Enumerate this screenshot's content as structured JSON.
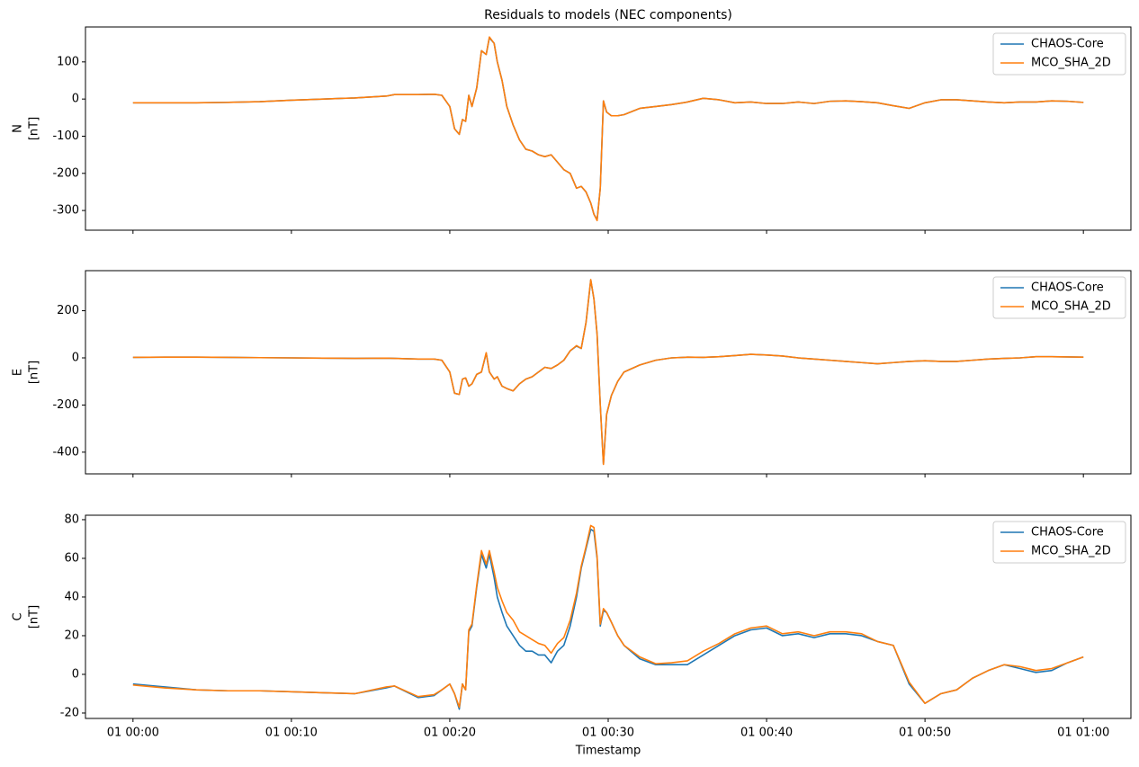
{
  "chart_data": [
    {
      "type": "line",
      "title": "Residuals to models (NEC components)",
      "ylabel": [
        "N",
        "[nT]"
      ],
      "x": [
        0,
        2,
        4,
        6,
        8,
        10,
        12,
        14,
        16,
        16.5,
        18,
        19,
        19.5,
        20,
        20.3,
        20.6,
        20.8,
        21,
        21.2,
        21.4,
        21.7,
        22,
        22.3,
        22.5,
        22.8,
        23,
        23.3,
        23.6,
        24,
        24.4,
        24.8,
        25.2,
        25.6,
        26,
        26.4,
        26.8,
        27.2,
        27.6,
        28,
        28.3,
        28.6,
        28.9,
        29.1,
        29.3,
        29.5,
        29.7,
        29.9,
        30.2,
        30.6,
        31,
        32,
        33,
        34,
        35,
        36,
        37,
        38,
        39,
        40,
        41,
        42,
        43,
        44,
        45,
        46,
        47,
        48,
        49,
        50,
        51,
        52,
        53,
        54,
        55,
        56,
        57,
        58,
        59,
        60
      ],
      "series": [
        {
          "name": "CHAOS-Core",
          "color": "#1f77b4",
          "values": [
            -10,
            -10,
            -10,
            -9,
            -7,
            -3,
            0,
            3,
            8,
            12,
            12,
            13,
            10,
            -20,
            -80,
            -95,
            -55,
            -60,
            10,
            -20,
            30,
            130,
            120,
            165,
            150,
            100,
            50,
            -20,
            -70,
            -110,
            -135,
            -140,
            -150,
            -155,
            -150,
            -170,
            -190,
            -200,
            -240,
            -235,
            -250,
            -280,
            -310,
            -325,
            -240,
            -5,
            -35,
            -45,
            -45,
            -42,
            -25,
            -20,
            -15,
            -8,
            2,
            -2,
            -10,
            -8,
            -12,
            -12,
            -8,
            -12,
            -6,
            -5,
            -7,
            -10,
            -18,
            -25,
            -10,
            -2,
            -2,
            -5,
            -8,
            -10,
            -8,
            -8,
            -5,
            -6,
            -9
          ]
        },
        {
          "name": "MCO_SHA_2D",
          "color": "#ff7f0e",
          "values": [
            -10,
            -10,
            -10,
            -9,
            -7,
            -3,
            0,
            3,
            8,
            12,
            12,
            13,
            10,
            -20,
            -80,
            -95,
            -55,
            -60,
            10,
            -20,
            30,
            130,
            120,
            167,
            150,
            100,
            50,
            -20,
            -70,
            -110,
            -135,
            -140,
            -150,
            -155,
            -150,
            -170,
            -190,
            -200,
            -240,
            -235,
            -250,
            -280,
            -310,
            -327,
            -240,
            -5,
            -35,
            -45,
            -45,
            -42,
            -25,
            -20,
            -15,
            -8,
            2,
            -2,
            -10,
            -8,
            -12,
            -12,
            -8,
            -12,
            -6,
            -5,
            -7,
            -10,
            -18,
            -25,
            -10,
            -2,
            -2,
            -5,
            -8,
            -10,
            -8,
            -8,
            -5,
            -6,
            -9
          ]
        }
      ],
      "xlim": [
        -3,
        63
      ],
      "ylim": [
        -353,
        194
      ],
      "yticks": [
        -300,
        -200,
        -100,
        0,
        100
      ],
      "legend": "upper right"
    },
    {
      "type": "line",
      "ylabel": [
        "E",
        "[nT]"
      ],
      "x": [
        0,
        2,
        4,
        6,
        8,
        10,
        12,
        14,
        16,
        16.5,
        18,
        19,
        19.5,
        20,
        20.3,
        20.6,
        20.8,
        21,
        21.2,
        21.4,
        21.7,
        22,
        22.3,
        22.5,
        22.8,
        23,
        23.3,
        23.6,
        24,
        24.4,
        24.8,
        25.2,
        25.6,
        26,
        26.4,
        26.8,
        27.2,
        27.6,
        28,
        28.3,
        28.6,
        28.9,
        29.1,
        29.3,
        29.5,
        29.7,
        29.9,
        30.2,
        30.6,
        31,
        32,
        33,
        34,
        35,
        36,
        37,
        38,
        39,
        40,
        41,
        42,
        43,
        44,
        45,
        46,
        47,
        48,
        49,
        50,
        51,
        52,
        53,
        54,
        55,
        56,
        57,
        58,
        59,
        60
      ],
      "series": [
        {
          "name": "CHAOS-Core",
          "color": "#1f77b4",
          "values": [
            2,
            3,
            3,
            2,
            1,
            0,
            -1,
            -2,
            -1,
            -2,
            -5,
            -5,
            -10,
            -60,
            -150,
            -155,
            -90,
            -85,
            -120,
            -110,
            -70,
            -60,
            20,
            -60,
            -90,
            -80,
            -120,
            -130,
            -140,
            -110,
            -90,
            -80,
            -60,
            -40,
            -45,
            -30,
            -10,
            30,
            50,
            40,
            150,
            330,
            250,
            100,
            -200,
            -450,
            -240,
            -160,
            -100,
            -60,
            -30,
            -10,
            0,
            3,
            2,
            5,
            10,
            15,
            12,
            8,
            0,
            -5,
            -10,
            -15,
            -20,
            -25,
            -20,
            -15,
            -12,
            -15,
            -15,
            -10,
            -5,
            -2,
            0,
            5,
            5,
            4,
            3
          ]
        },
        {
          "name": "MCO_SHA_2D",
          "color": "#ff7f0e",
          "values": [
            2,
            3,
            3,
            2,
            1,
            0,
            -1,
            -2,
            -1,
            -2,
            -5,
            -5,
            -10,
            -60,
            -150,
            -155,
            -90,
            -85,
            -120,
            -110,
            -70,
            -60,
            22,
            -60,
            -90,
            -80,
            -120,
            -130,
            -140,
            -110,
            -90,
            -80,
            -60,
            -40,
            -45,
            -30,
            -10,
            30,
            52,
            40,
            150,
            332,
            250,
            100,
            -200,
            -452,
            -240,
            -160,
            -100,
            -60,
            -30,
            -10,
            0,
            3,
            2,
            5,
            10,
            15,
            12,
            8,
            0,
            -5,
            -10,
            -15,
            -20,
            -25,
            -20,
            -15,
            -12,
            -15,
            -15,
            -10,
            -5,
            -2,
            0,
            5,
            5,
            4,
            3
          ]
        }
      ],
      "xlim": [
        -3,
        63
      ],
      "ylim": [
        -492,
        370
      ],
      "yticks": [
        -400,
        -200,
        0,
        200
      ],
      "legend": "upper right"
    },
    {
      "type": "line",
      "ylabel": [
        "C",
        "[nT]"
      ],
      "xlabel": "Timestamp",
      "x": [
        0,
        2,
        4,
        6,
        8,
        10,
        12,
        14,
        16,
        16.5,
        18,
        19,
        19.5,
        20,
        20.3,
        20.6,
        20.8,
        21,
        21.2,
        21.4,
        21.7,
        22,
        22.3,
        22.5,
        22.8,
        23,
        23.3,
        23.6,
        24,
        24.4,
        24.8,
        25.2,
        25.6,
        26,
        26.4,
        26.8,
        27.2,
        27.6,
        28,
        28.3,
        28.6,
        28.9,
        29.1,
        29.3,
        29.5,
        29.7,
        29.9,
        30.2,
        30.6,
        31,
        32,
        33,
        34,
        35,
        36,
        37,
        38,
        39,
        40,
        41,
        42,
        43,
        44,
        45,
        46,
        47,
        48,
        49,
        50,
        51,
        52,
        53,
        54,
        55,
        56,
        57,
        58,
        59,
        60
      ],
      "series": [
        {
          "name": "CHAOS-Core",
          "color": "#1f77b4",
          "values": [
            -5,
            -6.5,
            -8,
            -8.5,
            -8.5,
            -9,
            -9.5,
            -10,
            -7,
            -6,
            -12,
            -11,
            -8,
            -5,
            -10,
            -18,
            -5,
            -8,
            22,
            25,
            45,
            62,
            55,
            62,
            50,
            40,
            32,
            25,
            20,
            15,
            12,
            12,
            10,
            10,
            6,
            12,
            15,
            25,
            40,
            55,
            65,
            75,
            74,
            60,
            25,
            33,
            32,
            27,
            20,
            15,
            8,
            5,
            5,
            5,
            10,
            15,
            20,
            23,
            24,
            20,
            21,
            19,
            21,
            21,
            20,
            17,
            15,
            -5,
            -15,
            -10,
            -8,
            -2,
            2,
            5,
            3,
            1,
            2,
            6,
            9
          ]
        },
        {
          "name": "MCO_SHA_2D",
          "color": "#ff7f0e",
          "values": [
            -5.5,
            -7,
            -8,
            -8.5,
            -8.5,
            -9,
            -9.5,
            -10,
            -6.5,
            -6,
            -11.5,
            -10.5,
            -8,
            -5,
            -10,
            -17,
            -5,
            -8,
            23,
            26,
            46,
            64,
            57,
            64,
            53,
            45,
            38,
            32,
            28,
            22,
            20,
            18,
            16,
            15,
            11,
            16,
            19,
            28,
            42,
            56,
            66,
            77,
            76,
            61,
            26,
            34,
            32,
            27,
            20,
            15,
            9,
            5.5,
            6,
            7,
            12,
            16,
            21,
            24,
            25,
            21,
            22,
            20,
            22,
            22,
            21,
            17,
            15,
            -4,
            -15,
            -10,
            -8,
            -2,
            2,
            5,
            4,
            2,
            3,
            6,
            9
          ]
        }
      ],
      "xlim": [
        -3,
        63
      ],
      "ylim": [
        -22.8,
        82.3
      ],
      "yticks": [
        -20,
        0,
        20,
        40,
        60,
        80
      ],
      "xticks": [
        {
          "value": 0,
          "label": "01 00:00"
        },
        {
          "value": 10,
          "label": "01 00:10"
        },
        {
          "value": 20,
          "label": "01 00:20"
        },
        {
          "value": 30,
          "label": "01 00:30"
        },
        {
          "value": 40,
          "label": "01 00:40"
        },
        {
          "value": 50,
          "label": "01 00:50"
        },
        {
          "value": 60,
          "label": "01 01:00"
        }
      ],
      "legend": "upper right"
    }
  ]
}
